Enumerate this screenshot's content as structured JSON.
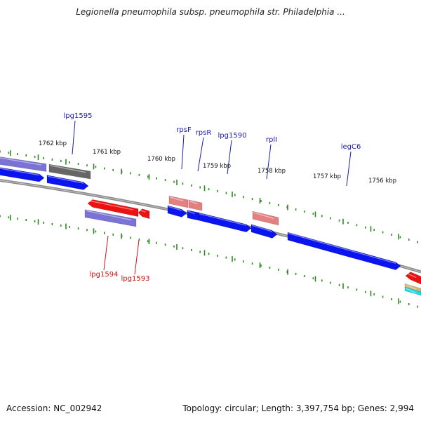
{
  "header": {
    "title": "Legionella pneumophila subsp. pneumophila str. Philadelphia ..."
  },
  "footer": {
    "accession": "Accession: NC_002942",
    "summary": "Topology: circular; Length: 3,397,754 bp; Genes: 2,994"
  },
  "colors": {
    "backbone": "#8a8a8a",
    "tick": "#2e8b22",
    "cds": "#0a14ee",
    "gene_lavender": "#7b72d6",
    "gene_gray": "#666666",
    "gene_red": "#ee1111",
    "gene_pink": "#e58080",
    "gene_cyan": "#18d8e8",
    "gene_tan": "#c8b87a",
    "label_top": "#1a1aa8",
    "label_bottom": "#cc1111",
    "kbp_label": "#111111"
  },
  "scale": {
    "unit": "kbp",
    "ticks": [
      {
        "label": "1762 kbp"
      },
      {
        "label": "1761 kbp"
      },
      {
        "label": "1760 kbp"
      },
      {
        "label": "1759 kbp"
      },
      {
        "label": "1758 kbp"
      },
      {
        "label": "1757 kbp"
      },
      {
        "label": "1756 kbp"
      }
    ]
  },
  "genes_top": [
    {
      "label": "lpg1595"
    },
    {
      "label": "rpsF"
    },
    {
      "label": "rpsR"
    },
    {
      "label": "lpg1590"
    },
    {
      "label": "rplI"
    },
    {
      "label": "legC6"
    }
  ],
  "genes_bottom": [
    {
      "label": "lpg1594"
    },
    {
      "label": "lpg1593"
    }
  ]
}
